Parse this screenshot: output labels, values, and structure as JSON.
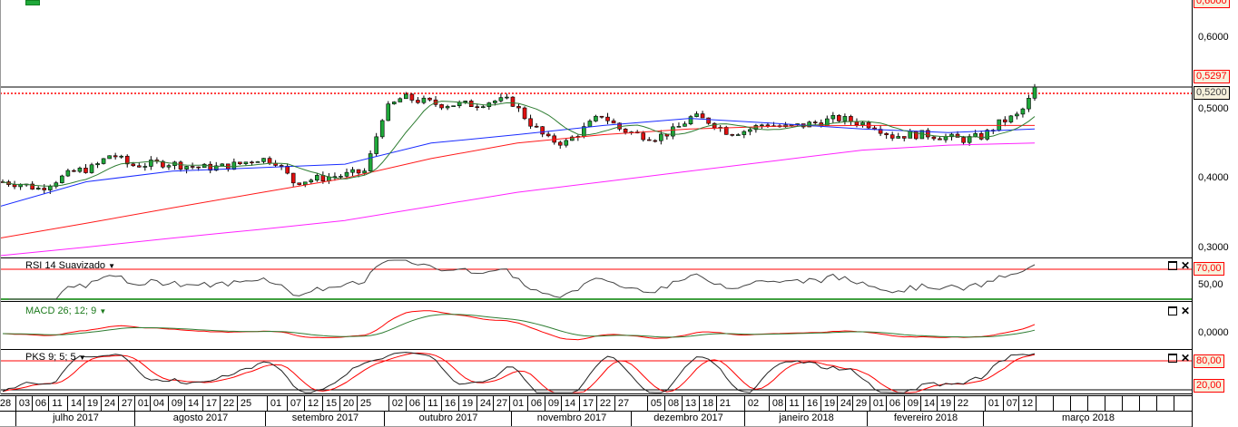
{
  "price_axis": {
    "labels": [
      "0,6000",
      "0,5000",
      "0,4000",
      "0,3000"
    ],
    "top_partial_label": "0,6000",
    "last_price": "0,5297",
    "hidden_label": "0,5200"
  },
  "panes": {
    "rsi": {
      "label": "RSI 14 Suavizado",
      "levels": [
        "70,00",
        "50,00"
      ],
      "upper_box": "70,00"
    },
    "macd": {
      "label": "MACD 26; 12; 9",
      "zero_label": "0,0000"
    },
    "pks": {
      "label": "PKS 9; 5; 5",
      "upper_box": "80,00",
      "lower_box": "20,00"
    }
  },
  "icons": {
    "maximize": "window-icon",
    "close": "close-icon",
    "dropdown": "caret-down-icon"
  },
  "colors": {
    "up": "#1fa83a",
    "down": "#e01010",
    "ma_short": "#2e7d32",
    "ma_mid": "#1a2cff",
    "ma_long": "#ff1a1a",
    "ma_longest": "#ff22ff",
    "rsi": "#444444",
    "macd": "#ff0000",
    "signal": "#2e7d32",
    "level": "#ff0000",
    "rsi_low": "#008000"
  },
  "x_axis": {
    "days": [
      "28",
      "03",
      "06",
      "11",
      "14",
      "19",
      "24",
      "27",
      "01",
      "04",
      "09",
      "14",
      "17",
      "22",
      "25",
      "01",
      "07",
      "12",
      "15",
      "20",
      "25",
      "02",
      "06",
      "11",
      "16",
      "19",
      "24",
      "27",
      "01",
      "06",
      "09",
      "14",
      "17",
      "22",
      "27",
      "05",
      "08",
      "13",
      "18",
      "21",
      "02",
      "08",
      "11",
      "16",
      "19",
      "24",
      "29",
      "01",
      "06",
      "09",
      "14",
      "19",
      "22",
      "01",
      "07",
      "12"
    ],
    "months": [
      "julho 2017",
      "agosto 2017",
      "setembro 2017",
      "outubro 2017",
      "novembro 2017",
      "dezembro 2017",
      "janeiro 2018",
      "fevereiro 2018",
      "março 2018"
    ]
  },
  "chart_data": {
    "type": "candlestick",
    "title": "",
    "ylim": [
      0.28,
      0.63
    ],
    "last_close": 0.5297,
    "close_samples_weekly": [
      0.395,
      0.392,
      0.385,
      0.398,
      0.41,
      0.415,
      0.435,
      0.418,
      0.42,
      0.422,
      0.418,
      0.415,
      0.416,
      0.42,
      0.428,
      0.425,
      0.395,
      0.398,
      0.402,
      0.405,
      0.41,
      0.495,
      0.515,
      0.51,
      0.505,
      0.505,
      0.505,
      0.51,
      0.51,
      0.48,
      0.455,
      0.45,
      0.47,
      0.49,
      0.47,
      0.462,
      0.458,
      0.468,
      0.488,
      0.48,
      0.465,
      0.468,
      0.478,
      0.472,
      0.475,
      0.48,
      0.485,
      0.48,
      0.475,
      0.46,
      0.462,
      0.462,
      0.458,
      0.455,
      0.46,
      0.48,
      0.49,
      0.5297
    ],
    "moving_averages": {
      "mid_blue": [
        0.36,
        0.395,
        0.41,
        0.415,
        0.42,
        0.45,
        0.462,
        0.475,
        0.485,
        0.478,
        0.47,
        0.465,
        0.47
      ],
      "long_red": [
        0.315,
        0.336,
        0.358,
        0.379,
        0.4,
        0.428,
        0.45,
        0.462,
        0.47,
        0.474,
        0.475,
        0.475,
        0.475
      ],
      "longest_magenta": [
        0.29,
        0.302,
        0.315,
        0.327,
        0.34,
        0.36,
        0.38,
        0.395,
        0.41,
        0.425,
        0.44,
        0.447,
        0.45
      ]
    }
  }
}
